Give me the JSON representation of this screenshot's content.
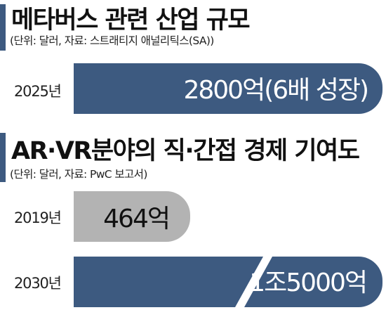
{
  "chart_data": [
    {
      "type": "bar",
      "title": "메타버스 관련 산업 규모",
      "source": "(단위: 달러, 자료: 스트래티지 애널리틱스(SA))",
      "categories": [
        "2025년"
      ],
      "values": [
        2800
      ],
      "value_labels": [
        "2800억(6배 성장)"
      ],
      "unit": "억 달러",
      "colors": {
        "bar": "#3d5a80",
        "label": "#ffffff"
      }
    },
    {
      "type": "bar",
      "title": "AR·VR분야의 직·간접 경제 기여도",
      "source": "(단위: 달러, 자료: PwC 보고서)",
      "categories": [
        "2019년",
        "2030년"
      ],
      "values": [
        464,
        15000
      ],
      "value_labels": [
        "464억",
        "1조5000억"
      ],
      "unit": "억 달러",
      "axis_break": true,
      "colors": {
        "bars": [
          "#b3b3b3",
          "#3d5a80"
        ],
        "labels": [
          "#111111",
          "#ffffff"
        ]
      }
    }
  ],
  "colors": {
    "accent": "#3d5a80",
    "navy": "#3d5a80",
    "gray": "#b3b3b3"
  }
}
